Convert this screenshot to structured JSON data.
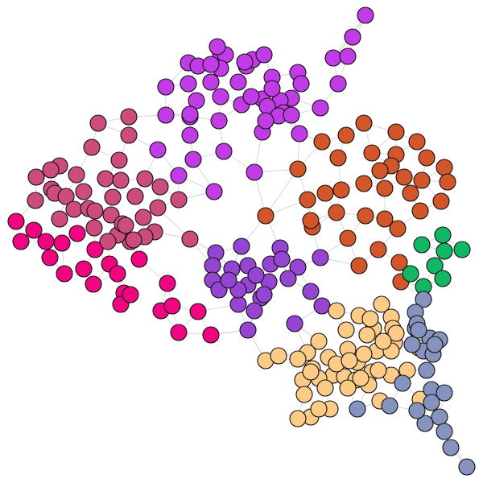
{
  "graph": {
    "type": "network",
    "node_outline": "#111111",
    "edge_color": "#c9c9c9",
    "communities": [
      {
        "name": "magenta",
        "color": "#F0047F",
        "count": 31
      },
      {
        "name": "mauve",
        "color": "#CC4C7E",
        "count": 38
      },
      {
        "name": "violet",
        "color": "#C13CE6",
        "count": 50
      },
      {
        "name": "purple",
        "color": "#9545D2",
        "count": 26
      },
      {
        "name": "orange-red",
        "color": "#D2562A",
        "count": 36
      },
      {
        "name": "green",
        "color": "#12B764",
        "count": 8
      },
      {
        "name": "peach",
        "color": "#FCCB86",
        "count": 48
      },
      {
        "name": "slate-blue",
        "color": "#8693BF",
        "count": 24
      }
    ]
  }
}
